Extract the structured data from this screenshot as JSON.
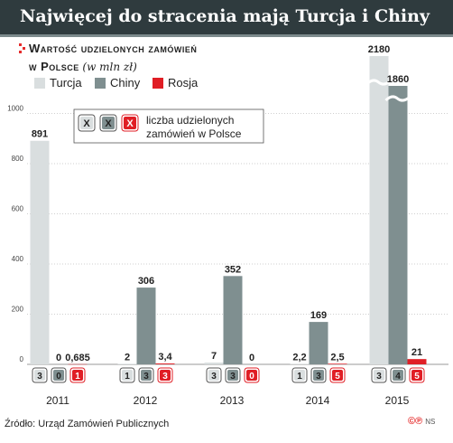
{
  "title": "Najwięcej do stracenia mają Turcja i Chiny",
  "subtitle_line1": "Wartość udzielonych zamówień",
  "subtitle_line2": "w Polsce",
  "subtitle_unit": "(w mln zł)",
  "annotation_label": "liczba udzielonych zamówień w Polsce",
  "annotation_line1": "liczba udzielonych",
  "annotation_line2": "zamówień w Polsce",
  "annotation_icons": [
    "X",
    "X",
    "X"
  ],
  "source": "Źródło: Urząd Zamówień Publicznych",
  "logo": "©℗",
  "logo_suffix": "NS",
  "colors": {
    "Turcja": "#d9dedf",
    "Chiny": "#7f8f90",
    "Rosja": "#e01e25",
    "title_bg": "#2f3b3e"
  },
  "chart_data": {
    "type": "bar",
    "categories": [
      "2011",
      "2012",
      "2013",
      "2014",
      "2015"
    ],
    "series": [
      {
        "name": "Turcja",
        "values": [
          891,
          2,
          7,
          2.2,
          2180
        ],
        "labels": [
          "891",
          "2",
          "7",
          "2,2",
          "2180"
        ],
        "counts": [
          3,
          1,
          3,
          1,
          3
        ]
      },
      {
        "name": "Chiny",
        "values": [
          0,
          306,
          352,
          169,
          1860
        ],
        "labels": [
          "0",
          "306",
          "352",
          "169",
          "1860"
        ],
        "counts": [
          0,
          3,
          3,
          3,
          4
        ]
      },
      {
        "name": "Rosja",
        "values": [
          0.685,
          3.4,
          0,
          2.5,
          21
        ],
        "labels": [
          "0,685",
          "3,4",
          "0",
          "2,5",
          "21"
        ],
        "counts": [
          1,
          3,
          0,
          5,
          5
        ]
      }
    ],
    "yticks": [
      0,
      200,
      400,
      600,
      800,
      1000
    ],
    "ylim": [
      0,
      1000
    ],
    "axis_break": true,
    "legend_position": "top-left",
    "grid": true
  }
}
